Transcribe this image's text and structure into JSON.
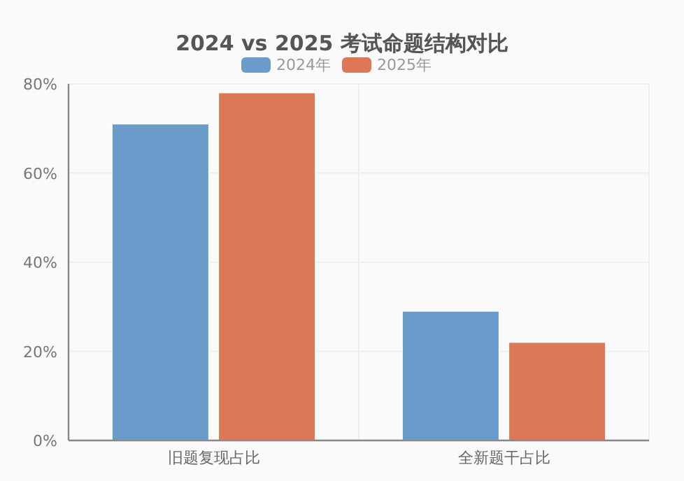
{
  "chart_data": {
    "type": "bar",
    "title": "2024 vs 2025 考试命题结构对比",
    "categories": [
      "旧题复现占比",
      "全新题干占比"
    ],
    "series": [
      {
        "name": "2024年",
        "color": "#6a9ccb",
        "values": [
          71,
          29
        ]
      },
      {
        "name": "2025年",
        "color": "#dc7856",
        "values": [
          78,
          22
        ]
      }
    ],
    "ylim": [
      0,
      80
    ],
    "yticks": [
      {
        "value": 0,
        "label": "0%"
      },
      {
        "value": 20,
        "label": "20%"
      },
      {
        "value": 40,
        "label": "40%"
      },
      {
        "value": 60,
        "label": "60%"
      },
      {
        "value": 80,
        "label": "80%"
      }
    ],
    "grid": true,
    "legend": "top"
  }
}
